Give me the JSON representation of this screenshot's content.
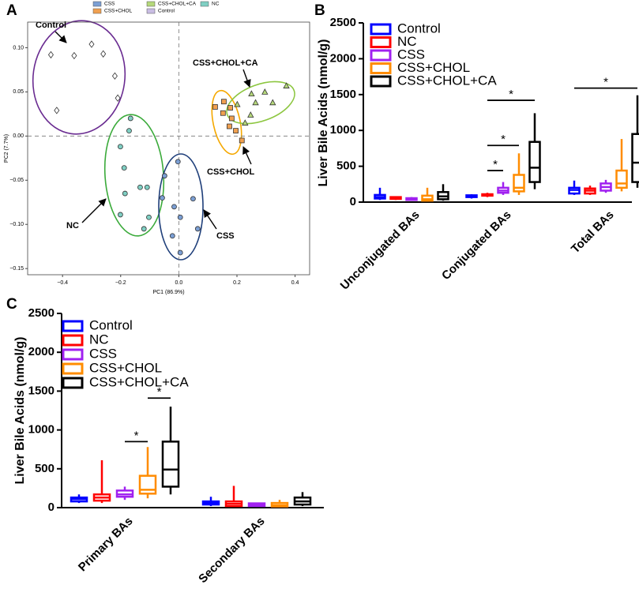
{
  "chart_data": [
    {
      "type": "scatter",
      "panel": "A",
      "xlabel": "PC1 (86.9%)",
      "ylabel": "PC2 (7.7%)",
      "xlim": [
        -0.52,
        0.45
      ],
      "xticks": [
        {
          "value": -0.4,
          "label": "−0.4"
        },
        {
          "value": -0.2,
          "label": "−0.2"
        },
        {
          "value": 0,
          "label": "0.0"
        },
        {
          "value": 0.2,
          "label": "0.2"
        },
        {
          "value": 0.4,
          "label": "0.4"
        }
      ],
      "ylim": [
        -0.157,
        0.129
      ],
      "yticks": [
        {
          "value": -0.15,
          "label": "−0.15"
        },
        {
          "value": -0.1,
          "label": "−0.10"
        },
        {
          "value": -0.05,
          "label": "−0.05"
        },
        {
          "value": 0,
          "label": "0.00"
        },
        {
          "value": 0.05,
          "label": "0.05"
        },
        {
          "value": 0.1,
          "label": "0.10"
        }
      ],
      "series": [
        {
          "name": "CSS",
          "color": "#7b9fd4",
          "marker": "circle",
          "x": [
            -0.003,
            -0.049,
            -0.057,
            -0.016,
            0.005,
            0.049,
            -0.022,
            0.005,
            0.065
          ],
          "values": [
            -0.029,
            -0.045,
            -0.07,
            -0.08,
            -0.092,
            -0.071,
            -0.113,
            -0.132,
            -0.105
          ]
        },
        {
          "name": "CSS+CHOL",
          "color": "#f0a050",
          "marker": "square",
          "x": [
            0.125,
            0.155,
            0.177,
            0.152,
            0.182,
            0.174,
            0.196,
            0.217
          ],
          "values": [
            0.033,
            0.039,
            0.032,
            0.026,
            0.02,
            0.011,
            0.006,
            -0.005
          ]
        },
        {
          "name": "CSS+CHOL+CA",
          "color": "#b5d87a",
          "marker": "triangle",
          "x": [
            0.201,
            0.25,
            0.264,
            0.296,
            0.323,
            0.37,
            0.247,
            0.228
          ],
          "values": [
            0.036,
            0.048,
            0.038,
            0.05,
            0.038,
            0.057,
            0.024,
            0.015
          ]
        },
        {
          "name": "Control",
          "color": "#c9bde3",
          "marker": "diamond",
          "x": [
            -0.44,
            -0.36,
            -0.3,
            -0.26,
            -0.22,
            -0.21,
            -0.42
          ],
          "values": [
            0.092,
            0.091,
            0.104,
            0.093,
            0.068,
            0.043,
            0.029
          ]
        },
        {
          "name": "NC",
          "color": "#7fcfc3",
          "marker": "circle",
          "x": [
            -0.166,
            -0.171,
            -0.201,
            -0.188,
            -0.133,
            -0.109,
            -0.185,
            -0.201,
            -0.103,
            -0.12
          ],
          "values": [
            0.02,
            0.006,
            -0.012,
            -0.036,
            -0.058,
            -0.058,
            -0.065,
            -0.089,
            -0.092,
            -0.105
          ]
        }
      ],
      "annotations": [
        "Control",
        "CSS+CHOL+CA",
        "CSS+CHOL",
        "NC",
        "CSS"
      ]
    },
    {
      "type": "box",
      "panel": "B",
      "ylabel": "Liver Bile Acids (nmol/g)",
      "categories": [
        "Unconjugated BAs",
        "Conjugated BAs",
        "Total BAs"
      ],
      "ylim": [
        0,
        2500
      ],
      "yticks": [
        0,
        500,
        1000,
        1500,
        2000,
        2500
      ],
      "series": [
        {
          "name": "Control",
          "color": "#0000ff",
          "values": [
            {
              "min": 30,
              "q1": 50,
              "median": 70,
              "q3": 100,
              "max": 200
            },
            {
              "min": 50,
              "q1": 70,
              "median": 80,
              "q3": 95,
              "max": 110
            },
            {
              "min": 100,
              "q1": 120,
              "median": 170,
              "q3": 200,
              "max": 300
            }
          ]
        },
        {
          "name": "NC",
          "color": "#ff0000",
          "values": [
            {
              "min": 30,
              "q1": 45,
              "median": 55,
              "q3": 70,
              "max": 80
            },
            {
              "min": 70,
              "q1": 90,
              "median": 100,
              "q3": 110,
              "max": 130
            },
            {
              "min": 100,
              "q1": 120,
              "median": 160,
              "q3": 190,
              "max": 230
            }
          ]
        },
        {
          "name": "CSS",
          "color": "#a020f0",
          "values": [
            {
              "min": 20,
              "q1": 30,
              "median": 40,
              "q3": 55,
              "max": 70
            },
            {
              "min": 100,
              "q1": 130,
              "median": 160,
              "q3": 200,
              "max": 280
            },
            {
              "min": 130,
              "q1": 160,
              "median": 210,
              "q3": 260,
              "max": 310
            }
          ]
        },
        {
          "name": "CSS+CHOL",
          "color": "#ff8c00",
          "values": [
            {
              "min": 10,
              "q1": 20,
              "median": 40,
              "q3": 90,
              "max": 200
            },
            {
              "min": 100,
              "q1": 150,
              "median": 200,
              "q3": 380,
              "max": 680
            },
            {
              "min": 150,
              "q1": 200,
              "median": 260,
              "q3": 440,
              "max": 880
            }
          ]
        },
        {
          "name": "CSS+CHOL+CA",
          "color": "#000000",
          "values": [
            {
              "min": 20,
              "q1": 40,
              "median": 80,
              "q3": 140,
              "max": 250
            },
            {
              "min": 180,
              "q1": 280,
              "median": 480,
              "q3": 840,
              "max": 1240
            },
            {
              "min": 200,
              "q1": 280,
              "median": 550,
              "q3": 950,
              "max": 1490
            }
          ]
        }
      ],
      "significance": [
        {
          "category": "Conjugated BAs",
          "pair": [
            "NC",
            "CSS"
          ],
          "value": 440,
          "label": "*"
        },
        {
          "category": "Conjugated BAs",
          "pair": [
            "NC",
            "CSS+CHOL"
          ],
          "value": 790,
          "label": "*"
        },
        {
          "category": "Conjugated BAs",
          "pair": [
            "NC",
            "CSS+CHOL+CA"
          ],
          "value": 1420,
          "label": "*"
        },
        {
          "category": "Total BAs",
          "pair": [
            "Control",
            "CSS+CHOL+CA"
          ],
          "value": 1590,
          "label": "*"
        }
      ]
    },
    {
      "type": "box",
      "panel": "C",
      "ylabel": "Liver Bile Acids (nmol/g)",
      "categories": [
        "Primary BAs",
        "Secondary BAs"
      ],
      "ylim": [
        0,
        2500
      ],
      "yticks": [
        0,
        500,
        1000,
        1500,
        2000,
        2500
      ],
      "series": [
        {
          "name": "Control",
          "color": "#0000ff",
          "values": [
            {
              "min": 60,
              "q1": 80,
              "median": 110,
              "q3": 130,
              "max": 170
            },
            {
              "min": 20,
              "q1": 40,
              "median": 60,
              "q3": 80,
              "max": 140
            }
          ]
        },
        {
          "name": "NC",
          "color": "#ff0000",
          "values": [
            {
              "min": 60,
              "q1": 90,
              "median": 130,
              "q3": 170,
              "max": 610
            },
            {
              "min": 10,
              "q1": 20,
              "median": 50,
              "q3": 80,
              "max": 280
            }
          ]
        },
        {
          "name": "CSS",
          "color": "#a020f0",
          "values": [
            {
              "min": 100,
              "q1": 140,
              "median": 170,
              "q3": 220,
              "max": 270
            },
            {
              "min": 10,
              "q1": 20,
              "median": 40,
              "q3": 55,
              "max": 60
            }
          ]
        },
        {
          "name": "CSS+CHOL",
          "color": "#ff8c00",
          "values": [
            {
              "min": 120,
              "q1": 180,
              "median": 230,
              "q3": 410,
              "max": 780
            },
            {
              "min": 5,
              "q1": 15,
              "median": 30,
              "q3": 60,
              "max": 100
            }
          ]
        },
        {
          "name": "CSS+CHOL+CA",
          "color": "#000000",
          "values": [
            {
              "min": 170,
              "q1": 270,
              "median": 490,
              "q3": 850,
              "max": 1300
            },
            {
              "min": 20,
              "q1": 40,
              "median": 80,
              "q3": 130,
              "max": 200
            }
          ]
        }
      ],
      "significance": [
        {
          "category": "Primary BAs",
          "pair": [
            "CSS",
            "CSS+CHOL"
          ],
          "value": 850,
          "label": "*"
        },
        {
          "category": "Primary BAs",
          "pair": [
            "CSS+CHOL",
            "CSS+CHOL+CA"
          ],
          "value": 1410,
          "label": "*"
        }
      ]
    }
  ]
}
